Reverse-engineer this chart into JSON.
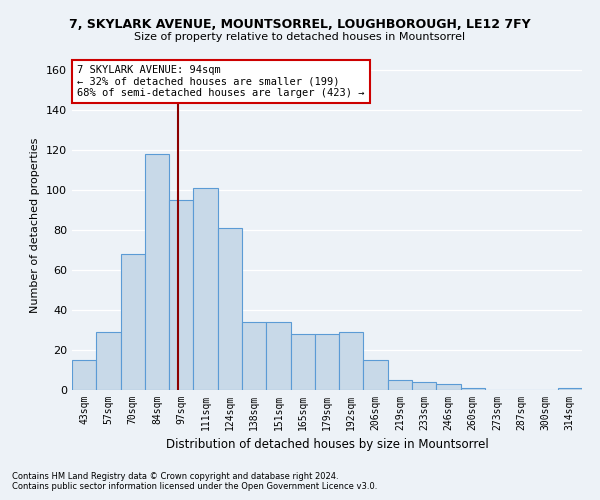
{
  "title_line1": "7, SKYLARK AVENUE, MOUNTSORREL, LOUGHBOROUGH, LE12 7FY",
  "title_line2": "Size of property relative to detached houses in Mountsorrel",
  "xlabel": "Distribution of detached houses by size in Mountsorrel",
  "ylabel": "Number of detached properties",
  "categories": [
    "43sqm",
    "57sqm",
    "70sqm",
    "84sqm",
    "97sqm",
    "111sqm",
    "124sqm",
    "138sqm",
    "151sqm",
    "165sqm",
    "179sqm",
    "192sqm",
    "206sqm",
    "219sqm",
    "233sqm",
    "246sqm",
    "260sqm",
    "273sqm",
    "287sqm",
    "300sqm",
    "314sqm"
  ],
  "values": [
    15,
    29,
    68,
    118,
    95,
    101,
    81,
    34,
    34,
    28,
    28,
    29,
    15,
    5,
    4,
    3,
    1,
    0,
    0,
    0,
    1
  ],
  "bar_color": "#c8d9e8",
  "bar_edge_color": "#5b9bd5",
  "vline_x": 3.85,
  "vline_color": "#8b0000",
  "ylim": [
    0,
    165
  ],
  "yticks": [
    0,
    20,
    40,
    60,
    80,
    100,
    120,
    140,
    160
  ],
  "annotation_text": "7 SKYLARK AVENUE: 94sqm\n← 32% of detached houses are smaller (199)\n68% of semi-detached houses are larger (423) →",
  "annotation_box_color": "#ffffff",
  "annotation_box_edge_color": "#cc0000",
  "footnote1": "Contains HM Land Registry data © Crown copyright and database right 2024.",
  "footnote2": "Contains public sector information licensed under the Open Government Licence v3.0.",
  "background_color": "#edf2f7",
  "grid_color": "#ffffff"
}
